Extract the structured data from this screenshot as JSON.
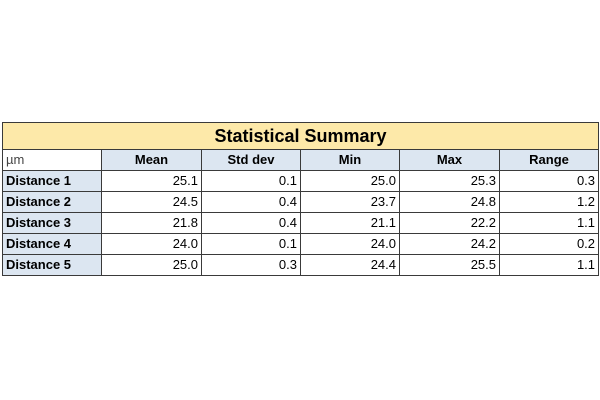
{
  "table": {
    "title": "Statistical Summary",
    "header": [
      "µm",
      "Mean",
      "Std dev",
      "Min",
      "Max",
      "Range"
    ],
    "rows": [
      [
        "Distance 1",
        "25.1",
        "0.1",
        "25.0",
        "25.3",
        "0.3"
      ],
      [
        "Distance 2",
        "24.5",
        "0.4",
        "23.7",
        "24.8",
        "1.2"
      ],
      [
        "Distance 3",
        "21.8",
        "0.4",
        "21.1",
        "22.2",
        "1.1"
      ],
      [
        "Distance 4",
        "24.0",
        "0.1",
        "24.0",
        "24.2",
        "0.2"
      ],
      [
        "Distance 5",
        "25.0",
        "0.3",
        "24.4",
        "25.5",
        "1.1"
      ]
    ]
  }
}
